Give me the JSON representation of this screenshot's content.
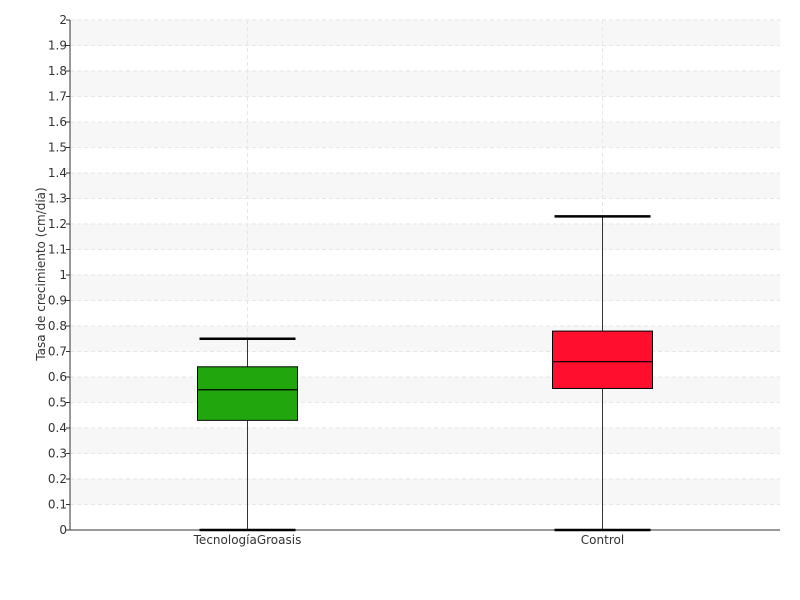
{
  "chart_data": {
    "type": "boxplot",
    "title": "",
    "xlabel": "",
    "ylabel": "Tasa de crecimiento (cm/día)",
    "ylim": [
      0,
      2
    ],
    "yticks": [
      "0",
      "0.1",
      "0.2",
      "0.3",
      "0.4",
      "0.5",
      "0.6",
      "0.7",
      "0.8",
      "0.9",
      "1",
      "1.1",
      "1.2",
      "1.3",
      "1.4",
      "1.5",
      "1.6",
      "1.7",
      "1.8",
      "1.9",
      "2"
    ],
    "grid": true,
    "legend": "none",
    "categories": [
      "TecnologíaGroasis",
      "Control"
    ],
    "boxes": [
      {
        "min": 0.0,
        "q1": 0.43,
        "median": 0.55,
        "q3": 0.64,
        "max": 0.75,
        "color": "#21a60e"
      },
      {
        "min": 0.0,
        "q1": 0.555,
        "median": 0.66,
        "q3": 0.78,
        "max": 1.23,
        "color": "#ff0f2d"
      }
    ]
  }
}
